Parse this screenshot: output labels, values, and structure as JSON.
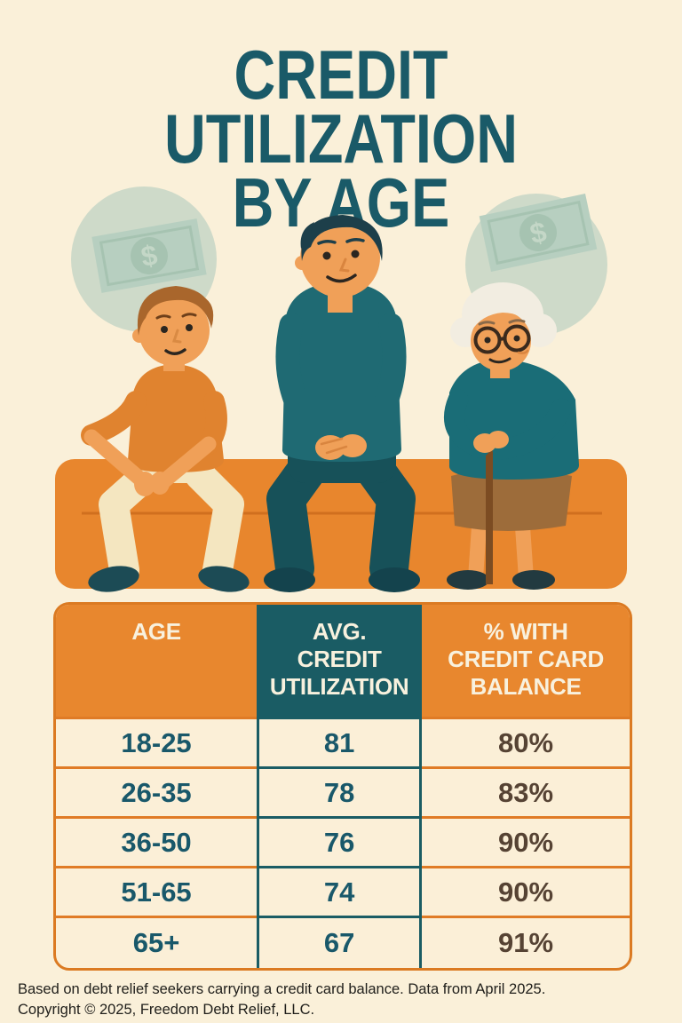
{
  "title": "CREDIT UTILIZATION\nBY AGE",
  "illustration": {
    "description": "Three generations (young man, middle-aged man, elderly woman) sitting on an orange bench with dollar-bill circles behind them",
    "dollar_sign": "$"
  },
  "table": {
    "headers": {
      "age": "AGE",
      "avg_utilization": "AVG.\nCREDIT\nUTILIZATION",
      "pct_with_balance": "% WITH\nCREDIT CARD\nBALANCE"
    },
    "rows": [
      {
        "age": "18-25",
        "avg": "81",
        "pct": "80%"
      },
      {
        "age": "26-35",
        "avg": "78",
        "pct": "83%"
      },
      {
        "age": "36-50",
        "avg": "76",
        "pct": "90%"
      },
      {
        "age": "51-65",
        "avg": "74",
        "pct": "90%"
      },
      {
        "age": "65+",
        "avg": "67",
        "pct": "91%"
      }
    ]
  },
  "footer": {
    "line1": "Based on debt relief seekers carrying a credit card balance. Data from April 2025.",
    "line2": "Copyright © 2025, Freedom Debt Relief, LLC."
  },
  "colors": {
    "background": "#faf0d9",
    "orange": "#e8872e",
    "orange_border": "#db7a22",
    "teal": "#1a5c64",
    "title_teal": "#1a5a68",
    "value_teal": "#19586a",
    "percent_brown": "#564334",
    "header_text": "#f8f1de",
    "sage_circle": "#cedac9",
    "bill_green": "#b7cfc0"
  },
  "chart_data": {
    "type": "table",
    "title": "Credit Utilization by Age",
    "categories": [
      "18-25",
      "26-35",
      "36-50",
      "51-65",
      "65+"
    ],
    "columns": [
      "Age",
      "Avg. Credit Utilization",
      "% With Credit Card Balance"
    ],
    "series": [
      {
        "name": "Avg. Credit Utilization",
        "values": [
          81,
          78,
          76,
          74,
          67
        ]
      },
      {
        "name": "% With Credit Card Balance",
        "values": [
          80,
          83,
          90,
          90,
          91
        ],
        "unit": "%"
      }
    ],
    "source_note": "Based on debt relief seekers carrying a credit card balance. Data from April 2025."
  }
}
